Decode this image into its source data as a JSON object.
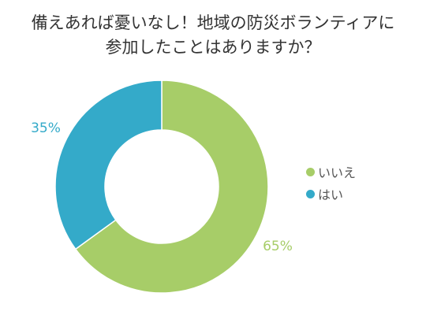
{
  "title_lines": [
    "備えあれば憂いなし！地域の防災ボランティアに",
    "参加したことはありますか？"
  ],
  "colors": {
    "iie": "#a7cd68",
    "hai": "#34aac9"
  },
  "chart_data": {
    "type": "pie",
    "style": "donut",
    "title": "備えあれば憂いなし！地域の防災ボランティアに参加したことはありますか？",
    "slices": [
      {
        "label": "いいえ",
        "value": 65,
        "value_label": "65%",
        "color": "#a7cd68"
      },
      {
        "label": "はい",
        "value": 35,
        "value_label": "35%",
        "color": "#34aac9"
      }
    ],
    "legend_position": "right"
  }
}
